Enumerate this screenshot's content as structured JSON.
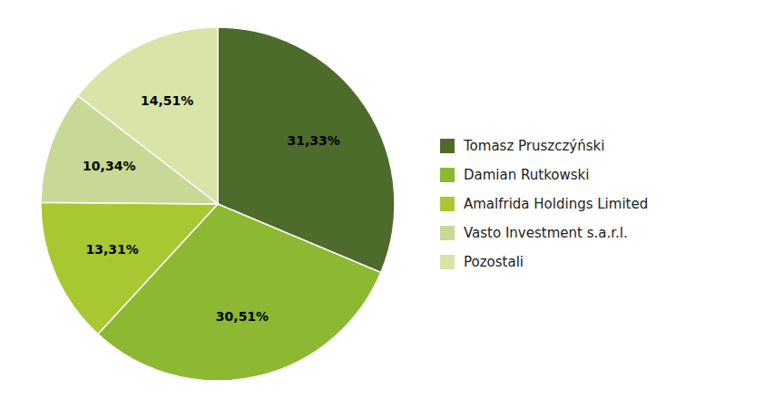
{
  "chart_data": {
    "type": "pie",
    "categories": [
      "Tomasz Pruszczýński",
      "Damian Rutkowski",
      "Amalfrida Holdings Limited",
      "Vasto Investment s.a.r.l.",
      "Pozostali"
    ],
    "values": [
      31.33,
      30.51,
      13.31,
      10.34,
      14.51
    ],
    "value_labels": [
      "31,33%",
      "30,51%",
      "13,31%",
      "10,34%",
      "14,51%"
    ],
    "colors": [
      "#4d6b2a",
      "#8db832",
      "#a8c832",
      "#c8d896",
      "#d8e4a8"
    ],
    "data_labels": true,
    "legend": "right"
  }
}
